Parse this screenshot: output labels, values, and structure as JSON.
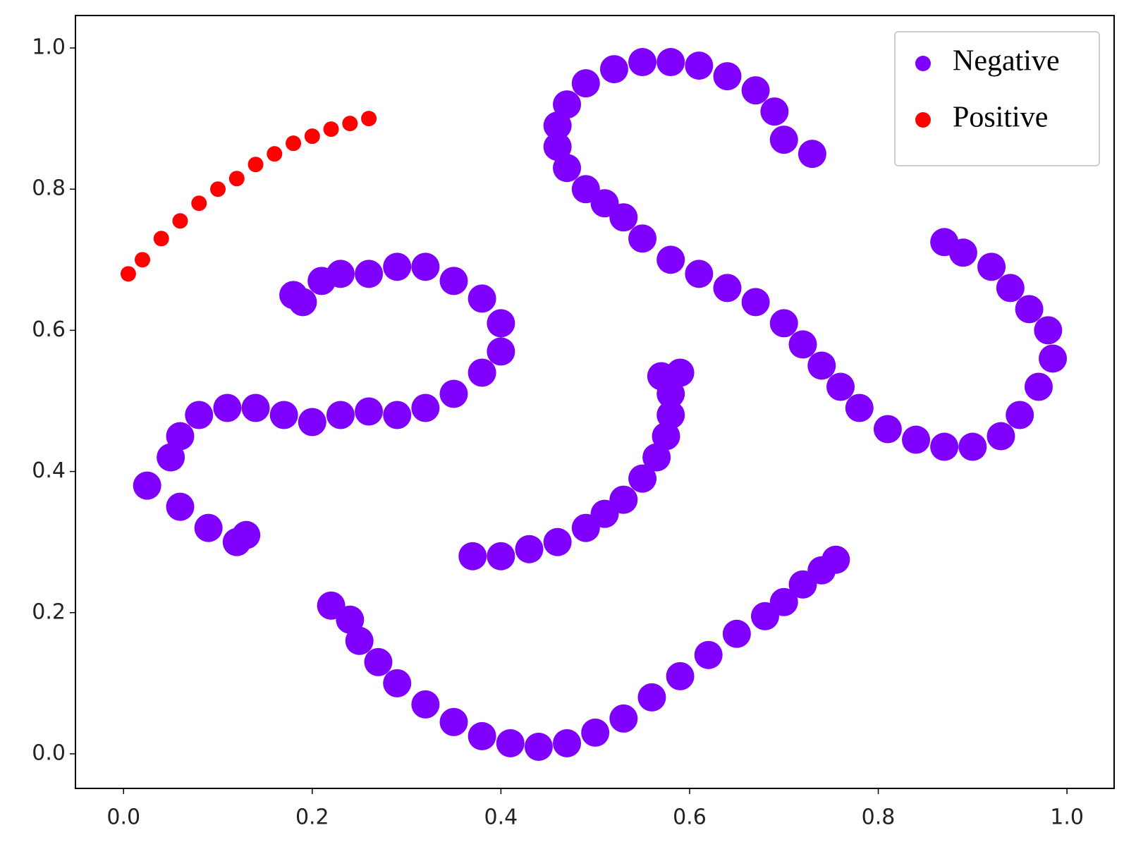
{
  "chart_data": {
    "type": "scatter",
    "xlim": [
      -0.051,
      1.05
    ],
    "ylim": [
      -0.049,
      1.046
    ],
    "xticks": [
      {
        "value": 0,
        "label": "0.0"
      },
      0.2,
      0.4,
      0.6,
      0.8,
      {
        "value": 1,
        "label": "1.0"
      }
    ],
    "yticks": [
      {
        "value": 0,
        "label": "0.0"
      },
      0.2,
      0.4,
      0.6,
      0.8,
      {
        "value": 1,
        "label": "1.0"
      }
    ],
    "legend": "upper right",
    "series": [
      {
        "name": "Negative",
        "color": "#8000ff",
        "x": [
          0.73,
          0.7,
          0.69,
          0.67,
          0.64,
          0.61,
          0.58,
          0.55,
          0.52,
          0.49,
          0.47,
          0.46,
          0.46,
          0.47,
          0.49,
          0.51,
          0.53,
          0.55,
          0.58,
          0.61,
          0.64,
          0.67,
          0.7,
          0.72,
          0.74,
          0.76,
          0.78,
          0.81,
          0.84,
          0.87,
          0.9,
          0.93,
          0.95,
          0.97,
          0.985,
          0.98,
          0.96,
          0.94,
          0.92,
          0.89,
          0.87,
          0.13,
          0.12,
          0.09,
          0.06,
          0.025,
          0.05,
          0.06,
          0.08,
          0.11,
          0.14,
          0.17,
          0.2,
          0.23,
          0.26,
          0.29,
          0.32,
          0.35,
          0.38,
          0.4,
          0.4,
          0.38,
          0.35,
          0.32,
          0.29,
          0.26,
          0.23,
          0.21,
          0.19,
          0.18,
          0.37,
          0.4,
          0.43,
          0.46,
          0.49,
          0.51,
          0.53,
          0.55,
          0.565,
          0.575,
          0.58,
          0.58,
          0.57,
          0.59,
          0.22,
          0.24,
          0.25,
          0.27,
          0.29,
          0.32,
          0.35,
          0.38,
          0.41,
          0.44,
          0.47,
          0.5,
          0.53,
          0.56,
          0.59,
          0.62,
          0.65,
          0.68,
          0.7,
          0.72,
          0.74,
          0.755
        ],
        "values": [
          0.85,
          0.87,
          0.91,
          0.94,
          0.96,
          0.975,
          0.98,
          0.98,
          0.97,
          0.95,
          0.92,
          0.89,
          0.86,
          0.83,
          0.8,
          0.78,
          0.76,
          0.73,
          0.7,
          0.68,
          0.66,
          0.64,
          0.61,
          0.58,
          0.55,
          0.52,
          0.49,
          0.46,
          0.445,
          0.435,
          0.435,
          0.45,
          0.48,
          0.52,
          0.56,
          0.6,
          0.63,
          0.66,
          0.69,
          0.71,
          0.725,
          0.31,
          0.3,
          0.32,
          0.35,
          0.38,
          0.42,
          0.45,
          0.48,
          0.49,
          0.49,
          0.48,
          0.47,
          0.48,
          0.485,
          0.48,
          0.49,
          0.51,
          0.54,
          0.57,
          0.61,
          0.645,
          0.67,
          0.69,
          0.69,
          0.68,
          0.68,
          0.67,
          0.64,
          0.65,
          0.28,
          0.28,
          0.29,
          0.3,
          0.32,
          0.34,
          0.36,
          0.39,
          0.42,
          0.45,
          0.48,
          0.51,
          0.535,
          0.54,
          0.21,
          0.19,
          0.16,
          0.13,
          0.1,
          0.07,
          0.045,
          0.025,
          0.015,
          0.01,
          0.015,
          0.03,
          0.05,
          0.08,
          0.11,
          0.14,
          0.17,
          0.195,
          0.215,
          0.24,
          0.26,
          0.275
        ]
      },
      {
        "name": "Positive",
        "color": "#ff0000",
        "x": [
          0.005,
          0.02,
          0.04,
          0.06,
          0.08,
          0.1,
          0.12,
          0.14,
          0.16,
          0.18,
          0.2,
          0.22,
          0.24,
          0.26
        ],
        "values": [
          0.68,
          0.7,
          0.73,
          0.755,
          0.78,
          0.8,
          0.815,
          0.835,
          0.85,
          0.865,
          0.875,
          0.885,
          0.893,
          0.9
        ]
      }
    ]
  }
}
